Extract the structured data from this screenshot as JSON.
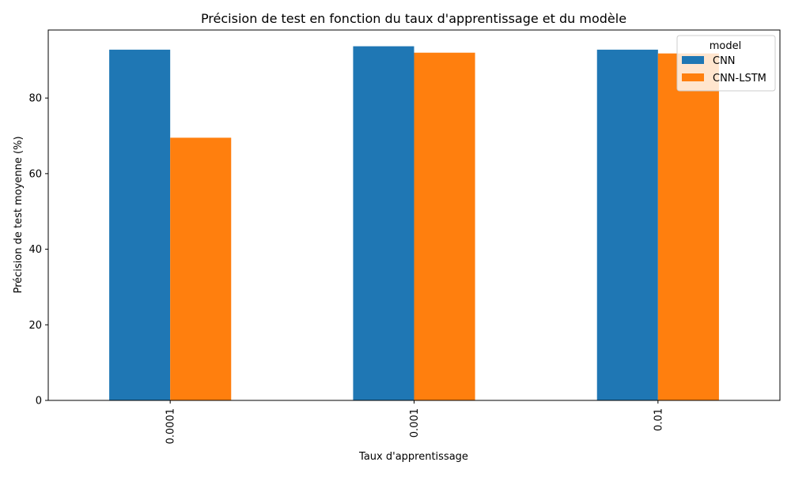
{
  "chart_data": {
    "type": "bar",
    "title": "Précision de test en fonction du taux d'apprentissage et du modèle",
    "xlabel": "Taux d'apprentissage",
    "ylabel": "Précision de test moyenne (%)",
    "categories": [
      "0.0001",
      "0.001",
      "0.01"
    ],
    "series": [
      {
        "name": "CNN",
        "values": [
          92.8,
          93.7,
          92.8
        ],
        "color": "#1f77b4"
      },
      {
        "name": "CNN-LSTM",
        "values": [
          69.5,
          92.0,
          91.8
        ],
        "color": "#ff7f0e"
      }
    ],
    "ylim": [
      0,
      98
    ],
    "yticks": [
      0,
      20,
      40,
      60,
      80
    ],
    "grid": false,
    "legend": {
      "title": "model",
      "position": "top-right"
    }
  }
}
